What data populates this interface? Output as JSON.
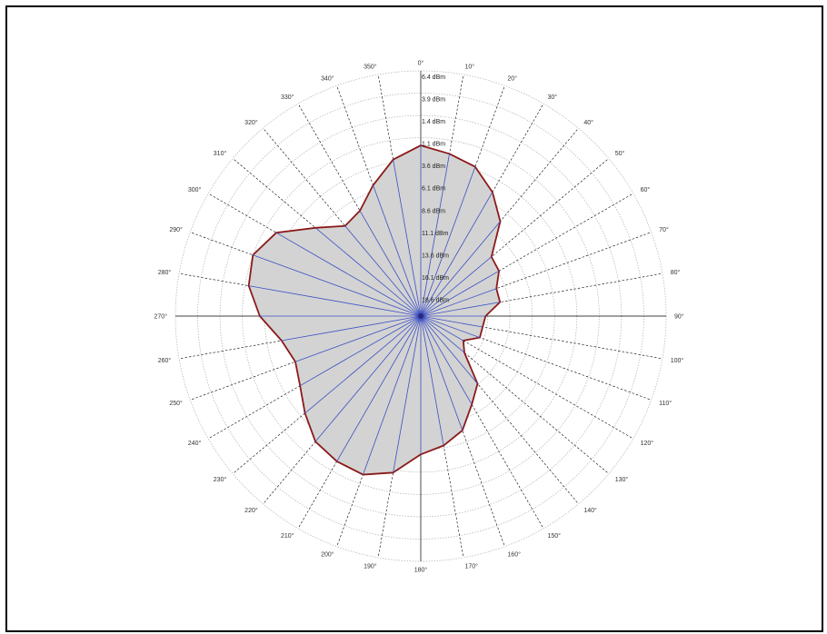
{
  "chart_data": {
    "type": "polar-line",
    "title": "",
    "angle_unit": "°",
    "angles_deg": [
      0,
      10,
      20,
      30,
      40,
      50,
      60,
      70,
      80,
      90,
      100,
      110,
      120,
      130,
      140,
      150,
      160,
      170,
      180,
      190,
      200,
      210,
      220,
      230,
      240,
      250,
      260,
      270,
      280,
      290,
      300,
      310,
      320,
      330,
      340,
      350
    ],
    "angle_tick_labels": [
      "0°",
      "10°",
      "20°",
      "30°",
      "40°",
      "50°",
      "60°",
      "70°",
      "80°",
      "90°",
      "100°",
      "110°",
      "120°",
      "130°",
      "140°",
      "150°",
      "160°",
      "170°",
      "180°",
      "190°",
      "200°",
      "210°",
      "220°",
      "230°",
      "240°",
      "250°",
      "260°",
      "270°",
      "280°",
      "290°",
      "300°",
      "310°",
      "320°",
      "330°",
      "340°",
      "350°"
    ],
    "radial_tick_labels": [
      "6.4 dBm",
      "3.9 dBm",
      "1.4 dBm",
      "1.1 dBm",
      "3.6 dBm",
      "6.1 dBm",
      "8.6 dBm",
      "11.1 dBm",
      "13.6 dBm",
      "16.1 dBm",
      "18.6 dBm"
    ],
    "radial_units": "dBm",
    "radial_range_dbm": [
      -18.6,
      6.4
    ],
    "radial_axis": "decreasing outward ring labels from outer to center",
    "series": [
      {
        "values_dbm": [
          -1.2,
          -1.8,
          -2.4,
          -4.0,
          -6.0,
          -9.2,
          -9.4,
          -10.4,
          -10.4,
          -12.0,
          -12.2,
          -12.2,
          -13.6,
          -12.8,
          -9.6,
          -8.2,
          -6.2,
          -5.2,
          -4.5,
          -2.4,
          -1.4,
          -1.5,
          -1.9,
          -3.2,
          -4.4,
          -5.0,
          -4.2,
          -2.2,
          -0.8,
          -0.4,
          -1.6,
          -4.6,
          -6.6,
          -6.2,
          -4.4,
          -2.4
        ]
      }
    ],
    "fill_color": "#d3d3d3",
    "line_color": "#8b1a1a",
    "spoke_color_inner": "#3b4fc4",
    "grid": true,
    "legend": "none"
  }
}
